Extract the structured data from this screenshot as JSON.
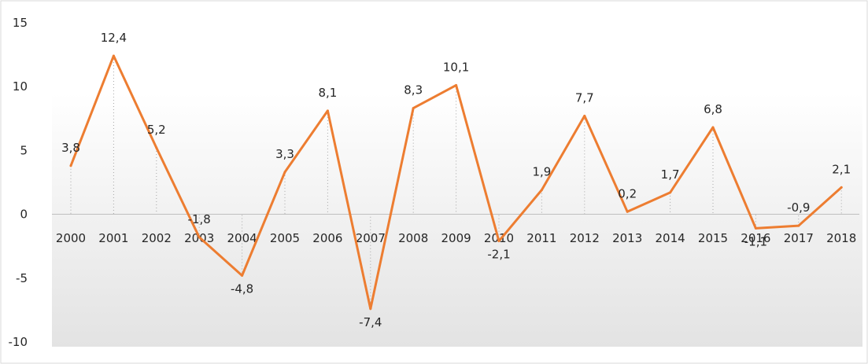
{
  "chart_data": {
    "type": "line",
    "title": "",
    "xlabel": "",
    "ylabel": "",
    "ylim": [
      -10,
      15
    ],
    "yticks": [
      15,
      10,
      5,
      0,
      -5,
      -10
    ],
    "grid": false,
    "legend": "none",
    "categories": [
      "2000",
      "2001",
      "2002",
      "2003",
      "2004",
      "2005",
      "2006",
      "2007",
      "2008",
      "2009",
      "2010",
      "2011",
      "2012",
      "2013",
      "2014",
      "2015",
      "2016",
      "2017",
      "2018"
    ],
    "series": [
      {
        "values": [
          3.8,
          12.4,
          5.2,
          -1.8,
          -4.8,
          3.3,
          8.1,
          -7.4,
          8.3,
          10.1,
          -2.1,
          1.9,
          7.7,
          0.2,
          1.7,
          6.8,
          -1.1,
          -0.9,
          2.1
        ],
        "labels": [
          "3,8",
          "12,4",
          "5,2",
          "-1,8",
          "-4,8",
          "3,3",
          "8,1",
          "-7,4",
          "8,3",
          "10,1",
          "-2,1",
          "1,9",
          "7,7",
          "0,2",
          "1,7",
          "6,8",
          "-1,1",
          "-0,9",
          "2,1"
        ],
        "color": "#ED7D31"
      }
    ],
    "colors": {
      "line": "#ED7D31",
      "axis": "#BFBFBF",
      "droplines": "#A6A6A6",
      "border": "#D9D9D9",
      "text": "#262626"
    }
  }
}
